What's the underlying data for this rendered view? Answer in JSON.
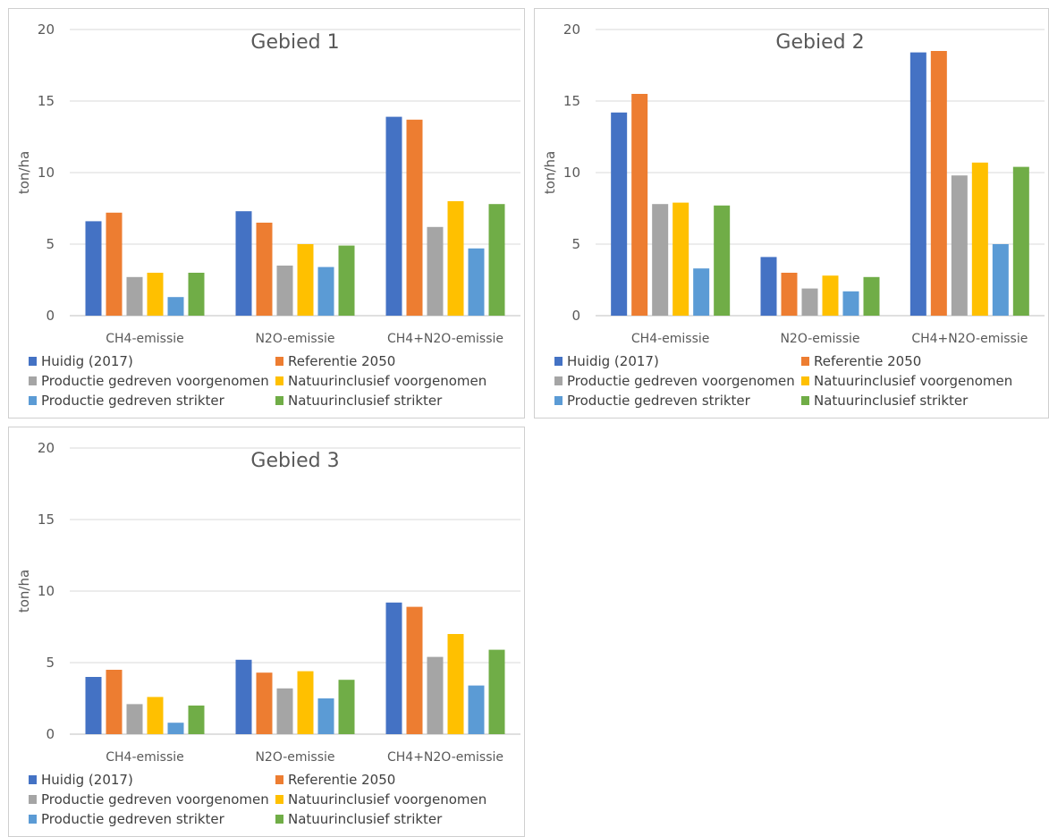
{
  "chart_data": [
    {
      "type": "bar",
      "title": "Gebied 1",
      "ylabel": "ton/ha",
      "xlabel": "",
      "ylim": [
        0,
        20
      ],
      "yticks": [
        "0",
        "5",
        "10",
        "15",
        "20"
      ],
      "grid": true,
      "legend_position": "bottom",
      "categories": [
        "CH4-emissie",
        "N2O-emissie",
        "CH4+N2O-emissie"
      ],
      "series": [
        {
          "name": "Huidig (2017)",
          "color": "#4472C4",
          "values": [
            6.6,
            7.3,
            13.9
          ]
        },
        {
          "name": "Referentie 2050",
          "color": "#ED7D31",
          "values": [
            7.2,
            6.5,
            13.7
          ]
        },
        {
          "name": "Productie gedreven voorgenomen",
          "color": "#A5A5A5",
          "values": [
            2.7,
            3.5,
            6.2
          ]
        },
        {
          "name": "Natuurinclusief voorgenomen",
          "color": "#FFC000",
          "values": [
            3.0,
            5.0,
            8.0
          ]
        },
        {
          "name": "Productie gedreven strikter",
          "color": "#5B9BD5",
          "values": [
            1.3,
            3.4,
            4.7
          ]
        },
        {
          "name": "Natuurinclusief strikter",
          "color": "#70AD47",
          "values": [
            3.0,
            4.9,
            7.8
          ]
        }
      ]
    },
    {
      "type": "bar",
      "title": "Gebied 2",
      "ylabel": "ton/ha",
      "xlabel": "",
      "ylim": [
        0,
        20
      ],
      "yticks": [
        "0",
        "5",
        "10",
        "15",
        "20"
      ],
      "grid": true,
      "legend_position": "bottom",
      "categories": [
        "CH4-emissie",
        "N2O-emissie",
        "CH4+N2O-emissie"
      ],
      "series": [
        {
          "name": "Huidig (2017)",
          "color": "#4472C4",
          "values": [
            14.2,
            4.1,
            18.4
          ]
        },
        {
          "name": "Referentie 2050",
          "color": "#ED7D31",
          "values": [
            15.5,
            3.0,
            18.5
          ]
        },
        {
          "name": "Productie gedreven voorgenomen",
          "color": "#A5A5A5",
          "values": [
            7.8,
            1.9,
            9.8
          ]
        },
        {
          "name": "Natuurinclusief voorgenomen",
          "color": "#FFC000",
          "values": [
            7.9,
            2.8,
            10.7
          ]
        },
        {
          "name": "Productie gedreven strikter",
          "color": "#5B9BD5",
          "values": [
            3.3,
            1.7,
            5.0
          ]
        },
        {
          "name": "Natuurinclusief strikter",
          "color": "#70AD47",
          "values": [
            7.7,
            2.7,
            10.4
          ]
        }
      ]
    },
    {
      "type": "bar",
      "title": "Gebied 3",
      "ylabel": "ton/ha",
      "xlabel": "",
      "ylim": [
        0,
        20
      ],
      "yticks": [
        "0",
        "5",
        "10",
        "15",
        "20"
      ],
      "grid": true,
      "legend_position": "bottom",
      "categories": [
        "CH4-emissie",
        "N2O-emissie",
        "CH4+N2O-emissie"
      ],
      "series": [
        {
          "name": "Huidig (2017)",
          "color": "#4472C4",
          "values": [
            4.0,
            5.2,
            9.2
          ]
        },
        {
          "name": "Referentie 2050",
          "color": "#ED7D31",
          "values": [
            4.5,
            4.3,
            8.9
          ]
        },
        {
          "name": "Productie gedreven voorgenomen",
          "color": "#A5A5A5",
          "values": [
            2.1,
            3.2,
            5.4
          ]
        },
        {
          "name": "Natuurinclusief voorgenomen",
          "color": "#FFC000",
          "values": [
            2.6,
            4.4,
            7.0
          ]
        },
        {
          "name": "Productie gedreven strikter",
          "color": "#5B9BD5",
          "values": [
            0.8,
            2.5,
            3.4
          ]
        },
        {
          "name": "Natuurinclusief strikter",
          "color": "#70AD47",
          "values": [
            2.0,
            3.8,
            5.9
          ]
        }
      ]
    }
  ]
}
